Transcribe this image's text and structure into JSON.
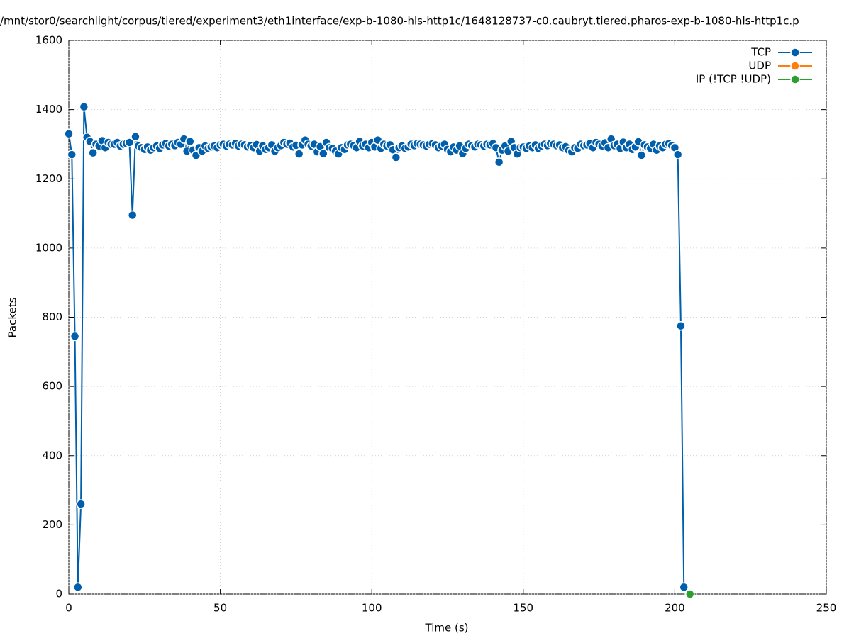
{
  "chart_data": {
    "type": "line",
    "title": "/mnt/stor0/searchlight/corpus/tiered/experiment3/eth1interface/exp-b-1080-hls-http1c/1648128737-c0.caubryt.tiered.pharos-exp-b-1080-hls-http1c.p",
    "x_label": "Time (s)",
    "y_label": "Packets",
    "xlim": [
      0,
      250
    ],
    "xticks": [
      0,
      50,
      100,
      150,
      200,
      250
    ],
    "ylim": [
      0,
      1600
    ],
    "yticks": [
      0,
      200,
      400,
      600,
      800,
      1000,
      1200,
      1400,
      1600
    ],
    "grid": true,
    "legend": "top-right",
    "series": [
      {
        "name": "TCP",
        "color": "#005fac",
        "x": [
          0,
          1,
          2,
          3,
          4,
          5,
          6,
          7,
          8,
          9,
          10,
          11,
          12,
          13,
          14,
          15,
          16,
          17,
          18,
          19,
          20,
          21,
          22,
          23,
          24,
          25,
          26,
          27,
          28,
          29,
          30,
          31,
          32,
          33,
          34,
          35,
          36,
          37,
          38,
          39,
          40,
          41,
          42,
          43,
          44,
          45,
          46,
          47,
          48,
          49,
          50,
          51,
          52,
          53,
          54,
          55,
          56,
          57,
          58,
          59,
          60,
          61,
          62,
          63,
          64,
          65,
          66,
          67,
          68,
          69,
          70,
          71,
          72,
          73,
          74,
          75,
          76,
          77,
          78,
          79,
          80,
          81,
          82,
          83,
          84,
          85,
          86,
          87,
          88,
          89,
          90,
          91,
          92,
          93,
          94,
          95,
          96,
          97,
          98,
          99,
          100,
          101,
          102,
          103,
          104,
          105,
          106,
          107,
          108,
          109,
          110,
          111,
          112,
          113,
          114,
          115,
          116,
          117,
          118,
          119,
          120,
          121,
          122,
          123,
          124,
          125,
          126,
          127,
          128,
          129,
          130,
          131,
          132,
          133,
          134,
          135,
          136,
          137,
          138,
          139,
          140,
          141,
          142,
          143,
          144,
          145,
          146,
          147,
          148,
          149,
          150,
          151,
          152,
          153,
          154,
          155,
          156,
          157,
          158,
          159,
          160,
          161,
          162,
          163,
          164,
          165,
          166,
          167,
          168,
          169,
          170,
          171,
          172,
          173,
          174,
          175,
          176,
          177,
          178,
          179,
          180,
          181,
          182,
          183,
          184,
          185,
          186,
          187,
          188,
          189,
          190,
          191,
          192,
          193,
          194,
          195,
          196,
          197,
          198,
          199,
          200,
          201,
          202,
          203
        ],
        "values": [
          1330,
          1270,
          745,
          20,
          260,
          1408,
          1320,
          1308,
          1275,
          1300,
          1295,
          1310,
          1290,
          1305,
          1300,
          1300,
          1305,
          1295,
          1300,
          1302,
          1305,
          1095,
          1322,
          1295,
          1290,
          1285,
          1292,
          1283,
          1290,
          1295,
          1288,
          1298,
          1302,
          1295,
          1300,
          1296,
          1305,
          1300,
          1315,
          1280,
          1308,
          1283,
          1268,
          1290,
          1280,
          1295,
          1288,
          1292,
          1295,
          1290,
          1298,
          1300,
          1295,
          1300,
          1298,
          1302,
          1295,
          1300,
          1298,
          1292,
          1296,
          1290,
          1299,
          1280,
          1295,
          1285,
          1290,
          1298,
          1280,
          1290,
          1296,
          1305,
          1300,
          1303,
          1292,
          1297,
          1272,
          1298,
          1312,
          1300,
          1295,
          1300,
          1278,
          1293,
          1273,
          1305,
          1290,
          1288,
          1280,
          1272,
          1290,
          1285,
          1298,
          1300,
          1296,
          1290,
          1308,
          1295,
          1300,
          1290,
          1305,
          1292,
          1312,
          1288,
          1300,
          1295,
          1298,
          1284,
          1262,
          1290,
          1295,
          1288,
          1292,
          1300,
          1296,
          1302,
          1300,
          1298,
          1295,
          1300,
          1302,
          1298,
          1290,
          1295,
          1300,
          1285,
          1278,
          1292,
          1283,
          1295,
          1273,
          1288,
          1300,
          1296,
          1292,
          1300,
          1298,
          1295,
          1300,
          1298,
          1302,
          1290,
          1248,
          1283,
          1295,
          1280,
          1308,
          1290,
          1272,
          1290,
          1292,
          1288,
          1295,
          1290,
          1298,
          1288,
          1295,
          1300,
          1296,
          1302,
          1300,
          1296,
          1298,
          1290,
          1293,
          1282,
          1278,
          1290,
          1288,
          1300,
          1296,
          1298,
          1302,
          1290,
          1305,
          1300,
          1295,
          1304,
          1290,
          1315,
          1296,
          1300,
          1288,
          1306,
          1290,
          1300,
          1285,
          1292,
          1307,
          1268,
          1298,
          1292,
          1288,
          1300,
          1283,
          1295,
          1290,
          1300,
          1302,
          1296,
          1290,
          1270,
          775,
          20
        ]
      },
      {
        "name": "UDP",
        "color": "#ff7f0e",
        "x": [],
        "values": []
      },
      {
        "name": "IP (!TCP  !UDP)",
        "color": "#2ca02c",
        "x": [
          205
        ],
        "values": [
          0
        ]
      }
    ]
  }
}
